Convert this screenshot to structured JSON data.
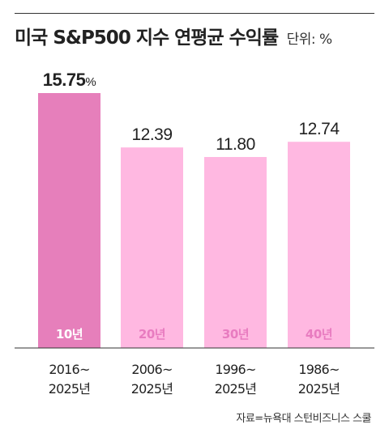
{
  "title": "미국 S&P500 지수 연평균 수익률",
  "unit_label": "단위: %",
  "source": "자료=뉴욕대 스턴비즈니스 스쿨",
  "chart_data": {
    "type": "bar",
    "categories": [
      "2016~\n2025년",
      "2006~\n2025년",
      "1996~\n2025년",
      "1986~\n2025년"
    ],
    "period_labels": [
      "10년",
      "20년",
      "30년",
      "40년"
    ],
    "values": [
      15.75,
      12.39,
      11.8,
      12.74
    ],
    "value_labels": [
      "15.75",
      "12.39",
      "11.80",
      "12.74"
    ],
    "first_value_suffix": "%",
    "title": "미국 S&P500 지수 연평균 수익률",
    "ylim": [
      0,
      17.25
    ],
    "colors": {
      "highlight_bar": "#e67fbb",
      "bar": "#ffb8e1",
      "highlight_period": "#ffffff",
      "period": "#e87cc0",
      "axis": "#333333"
    }
  }
}
